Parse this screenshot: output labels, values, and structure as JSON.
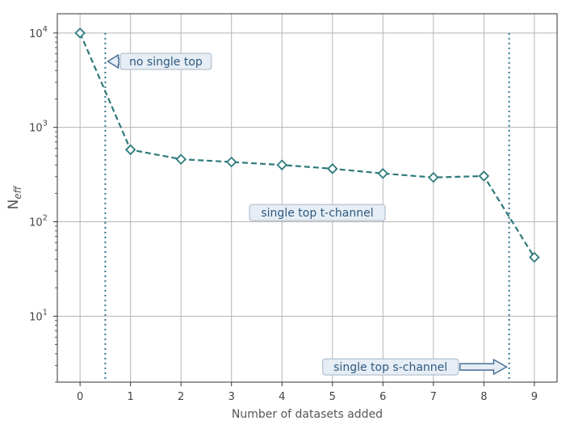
{
  "chart_data": {
    "type": "line",
    "title": "",
    "xlabel": "Number of datasets added",
    "ylabel_base": "N",
    "ylabel_sub": "eff",
    "x": [
      0,
      1,
      2,
      3,
      4,
      5,
      6,
      7,
      8,
      9
    ],
    "x_tick_labels": [
      "0",
      "1",
      "2",
      "3",
      "4",
      "5",
      "6",
      "7",
      "8",
      "9"
    ],
    "y_scale": "log",
    "y_ticks": [
      {
        "base": "10",
        "exp": "1"
      },
      {
        "base": "10",
        "exp": "2"
      },
      {
        "base": "10",
        "exp": "3"
      },
      {
        "base": "10",
        "exp": "4"
      }
    ],
    "xlim": [
      -0.45,
      9.45
    ],
    "ylim": [
      2.0,
      16000
    ],
    "grid": true,
    "series": [
      {
        "values": [
          10000,
          580,
          460,
          430,
          400,
          365,
          325,
          295,
          305,
          42
        ],
        "color": "#2f7a7a",
        "line_style": "dashed",
        "marker": "diamond"
      }
    ],
    "vlines": [
      {
        "x": 0.5,
        "color": "#2e6e8e",
        "style": "dotted"
      },
      {
        "x": 8.5,
        "color": "#2e6e8e",
        "style": "dotted"
      }
    ],
    "annotations": [
      {
        "text": "no single top",
        "anchor_x": 1.7,
        "anchor_y": 5000,
        "arrow_to_x": 0.55,
        "arrow_dir": "left"
      },
      {
        "text": "single top t-channel",
        "anchor_x": 4.7,
        "anchor_y": 125,
        "arrow_to_x": null,
        "arrow_dir": "none"
      },
      {
        "text": "single top s-channel",
        "anchor_x": 6.15,
        "anchor_y": 2.9,
        "arrow_to_x": 8.45,
        "arrow_dir": "right"
      }
    ],
    "annotation_style": {
      "box_fill": "#e6edf4",
      "box_stroke": "#a6b6c6",
      "arrow_fill": "#e6edf4",
      "arrow_stroke": "#4a6f9a"
    }
  }
}
